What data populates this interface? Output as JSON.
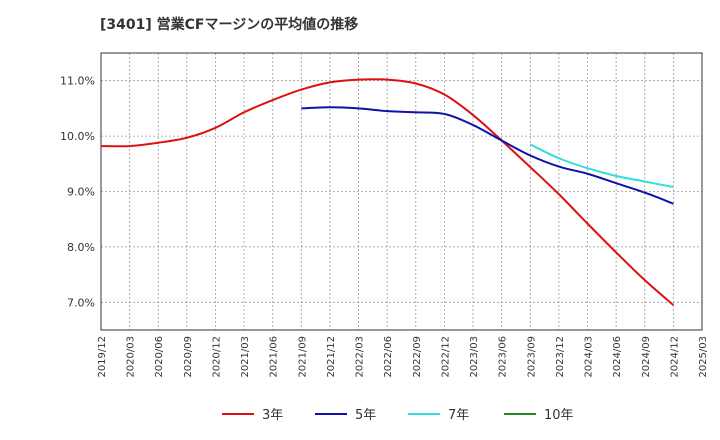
{
  "chart_data": {
    "type": "line",
    "title": "[3401]  営業CFマージンの平均値の推移",
    "xlabel": "",
    "ylabel": "",
    "ylim": [
      6.5,
      11.5
    ],
    "y_ticks": [
      "7.0%",
      "8.0%",
      "9.0%",
      "10.0%",
      "11.0%"
    ],
    "y_tick_values": [
      7,
      8,
      9,
      10,
      11
    ],
    "grid": true,
    "legend_position": "bottom",
    "categories": [
      "2019/12",
      "2020/03",
      "2020/06",
      "2020/09",
      "2020/12",
      "2021/03",
      "2021/06",
      "2021/09",
      "2021/12",
      "2022/03",
      "2022/06",
      "2022/09",
      "2022/12",
      "2023/03",
      "2023/06",
      "2023/09",
      "2023/12",
      "2024/03",
      "2024/06",
      "2024/09",
      "2024/12",
      "2025/03"
    ],
    "series": [
      {
        "name": "3年",
        "color": "#dd1111",
        "values": [
          9.82,
          9.82,
          9.88,
          9.97,
          10.15,
          10.43,
          10.65,
          10.84,
          10.97,
          11.02,
          11.02,
          10.95,
          10.75,
          10.38,
          9.92,
          9.44,
          8.95,
          8.42,
          7.9,
          7.4,
          6.95,
          null
        ]
      },
      {
        "name": "5年",
        "color": "#1111aa",
        "values": [
          null,
          null,
          null,
          null,
          null,
          null,
          null,
          10.5,
          10.52,
          10.5,
          10.45,
          10.43,
          10.4,
          10.2,
          9.92,
          9.65,
          9.45,
          9.32,
          9.15,
          8.98,
          8.78,
          null
        ]
      },
      {
        "name": "7年",
        "color": "#33dddd",
        "values": [
          null,
          null,
          null,
          null,
          null,
          null,
          null,
          null,
          null,
          null,
          null,
          null,
          null,
          null,
          null,
          9.85,
          9.6,
          9.42,
          9.28,
          9.18,
          9.08,
          null
        ]
      },
      {
        "name": "10年",
        "color": "#228b22",
        "values": [
          null,
          null,
          null,
          null,
          null,
          null,
          null,
          null,
          null,
          null,
          null,
          null,
          null,
          null,
          null,
          null,
          null,
          null,
          null,
          null,
          null,
          null
        ]
      }
    ]
  }
}
